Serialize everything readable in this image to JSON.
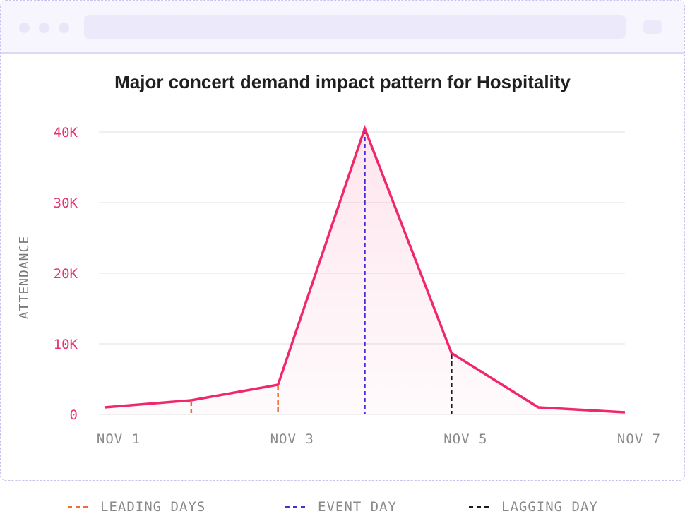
{
  "window": {
    "title_bar_icons": [
      "window-dot-icon",
      "window-dot-icon",
      "window-dot-icon"
    ]
  },
  "colors": {
    "line": "#f0286a",
    "tick_label": "#e8336d",
    "axis_label": "#7a7a7a",
    "grid": "#ececec",
    "leading": "#f06a32",
    "event": "#4b2bdc",
    "lagging": "#1a1a1a"
  },
  "chart_data": {
    "type": "area",
    "title": "Major concert demand impact pattern for Hospitality",
    "ylabel": "ATTENDANCE",
    "xlabel": "",
    "ylim": [
      0,
      40000
    ],
    "yticks": [
      0,
      10000,
      20000,
      30000,
      40000
    ],
    "ytick_labels": [
      "0",
      "10K",
      "20K",
      "30K",
      "40K"
    ],
    "x_range": [
      "2000-11-01",
      "2000-11-07"
    ],
    "xticks": [
      "2000-11-01",
      "2000-11-03",
      "2000-11-05",
      "2000-11-07"
    ],
    "xtick_labels": [
      "NOV 1",
      "NOV 3",
      "NOV 5",
      "NOV 7"
    ],
    "grid": true,
    "series": [
      {
        "x": [
          "2000-11-01",
          "2000-11-02",
          "2000-11-03",
          "2000-11-04",
          "2000-11-05",
          "2000-11-06",
          "2000-11-07"
        ],
        "values": [
          1000,
          2000,
          4200,
          40500,
          8700,
          1000,
          300
        ]
      }
    ],
    "markers": [
      {
        "x": "2000-11-02",
        "kind": "leading"
      },
      {
        "x": "2000-11-03",
        "kind": "leading"
      },
      {
        "x": "2000-11-04",
        "kind": "event"
      },
      {
        "x": "2000-11-05",
        "kind": "lagging"
      }
    ],
    "legend": {
      "placement": "bottom",
      "items": [
        {
          "label": "LEADING DAYS",
          "kind": "leading"
        },
        {
          "label": "EVENT DAY",
          "kind": "event"
        },
        {
          "label": "LAGGING DAY",
          "kind": "lagging"
        }
      ]
    }
  }
}
